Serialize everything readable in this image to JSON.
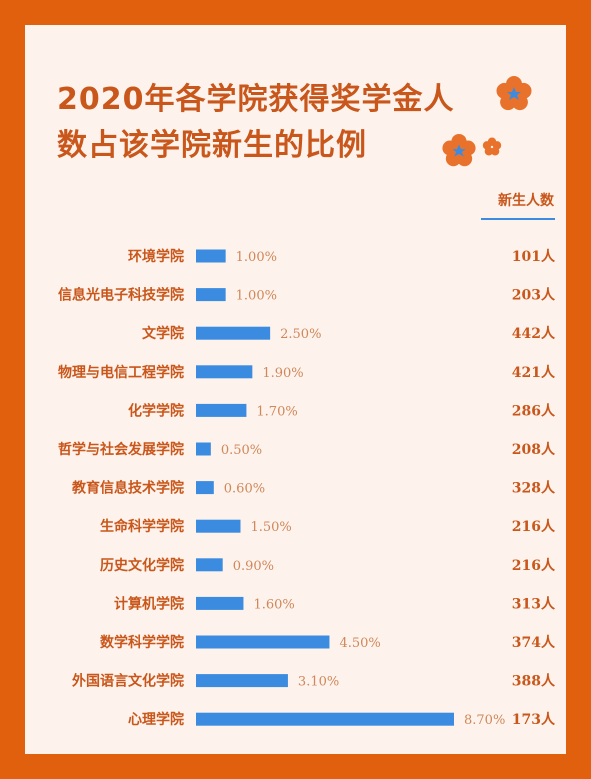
{
  "title": "2020年各学院获得奖学金人数占该学院新生的比例",
  "column_header": "新生人数",
  "colors": {
    "frame": "#e0600e",
    "background": "#fdf3ec",
    "text": "#c9561a",
    "bar": "#3b8be0",
    "value_text": "#d0875a"
  },
  "chart_data": {
    "type": "bar",
    "orientation": "horizontal",
    "title": "2020年各学院获得奖学金人数占该学院新生的比例",
    "categories": [
      "环境学院",
      "信息光电子科技学院",
      "文学院",
      "物理与电信工程学院",
      "化学学院",
      "哲学与社会发展学院",
      "教育信息技术学院",
      "生命科学学院",
      "历史文化学院",
      "计算机学院",
      "数学科学学院",
      "外国语言文化学院",
      "心理学院"
    ],
    "values": [
      1.0,
      1.0,
      2.5,
      1.9,
      1.7,
      0.5,
      0.6,
      1.5,
      0.9,
      1.6,
      4.5,
      3.1,
      8.7
    ],
    "value_labels": [
      "1.00%",
      "1.00%",
      "2.50%",
      "1.90%",
      "1.70%",
      "0.50%",
      "0.60%",
      "1.50%",
      "0.90%",
      "1.60%",
      "4.50%",
      "3.10%",
      "8.70%"
    ],
    "freshmen_labels": [
      "101人",
      "203人",
      "442人",
      "421人",
      "286人",
      "208人",
      "328人",
      "216人",
      "216人",
      "313人",
      "374人",
      "388人",
      "173人"
    ],
    "unit": "%",
    "xlim": [
      0,
      8.7
    ],
    "grid": false,
    "legend": "none"
  }
}
